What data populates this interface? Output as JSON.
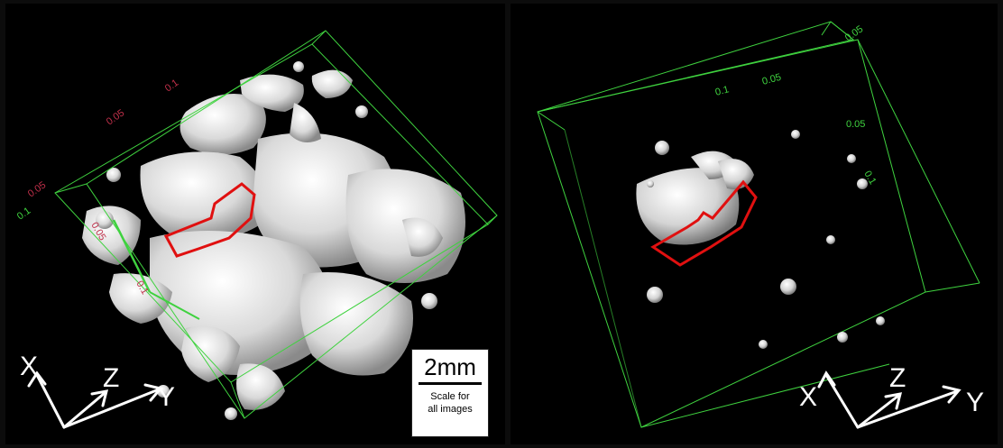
{
  "left_panel": {
    "ticks_red": [
      "0.1",
      "0.05",
      "0.05",
      "0.05",
      "0.1"
    ],
    "ticks_green": [
      "0.1"
    ],
    "axes": {
      "x": "X",
      "y": "Y",
      "z": "Z"
    }
  },
  "right_panel": {
    "ticks_green": [
      "0.05",
      "0.05",
      "0.1",
      "0.05",
      "0.1"
    ],
    "axes": {
      "x": "X",
      "y": "Y",
      "z": "Z"
    }
  },
  "scale_bar": {
    "value": "2mm",
    "caption_line1": "Scale for",
    "caption_line2": "all images"
  },
  "colors": {
    "background": "#000000",
    "bounding_box": "#3fd23f",
    "highlight_outline": "#e01010",
    "particles": "#e6e6e6",
    "tick_red": "#c0304a"
  }
}
